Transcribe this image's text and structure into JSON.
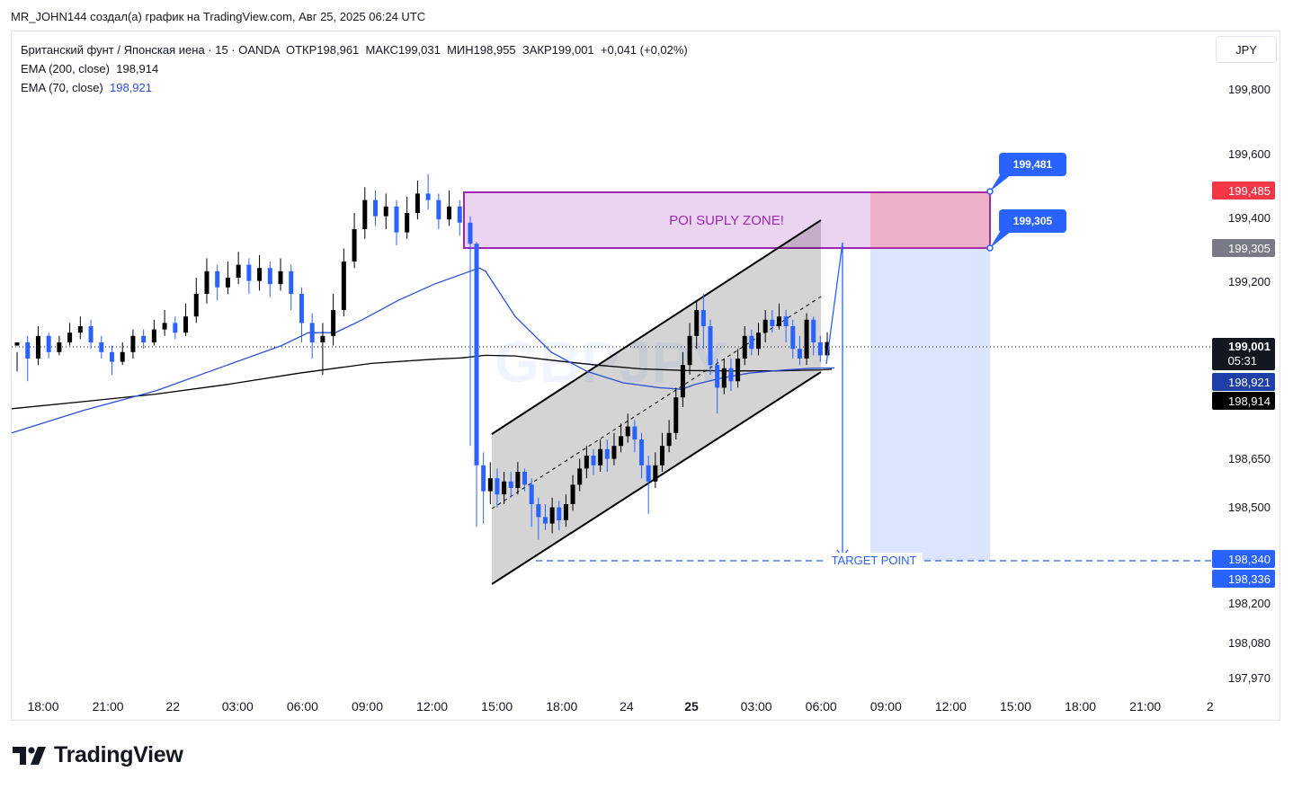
{
  "header": {
    "attribution": "MR_JOHN144 создал(а) график на TradingView.com, Авг 25, 2025 06:24 UTC"
  },
  "legend": {
    "symbol": "Британский фунт / Японская иена · 15 · OANDA",
    "open_label": "ОТКР",
    "open": "198,961",
    "high_label": "МАКС",
    "high": "199,031",
    "low_label": "МИН",
    "low": "198,955",
    "close_label": "ЗАКР",
    "close": "199,001",
    "change": "+0,041 (+0,02%)",
    "ema200_label": "EMA (200, close)",
    "ema200_value": "198,914",
    "ema70_label": "EMA (70, close)",
    "ema70_value": "198,921"
  },
  "currency_button": "JPY",
  "brand": {
    "name": "TradingView"
  },
  "chart_data": {
    "type": "candlestick",
    "symbol": "GBPJPY",
    "watermark": "GBPJPY",
    "timeframe": "15",
    "x_ticks": [
      "18:00",
      "21:00",
      "22",
      "03:00",
      "06:00",
      "09:00",
      "12:00",
      "15:00",
      "18:00",
      "24",
      "25",
      "03:00",
      "06:00",
      "09:00",
      "12:00",
      "15:00",
      "18:00",
      "21:00",
      "2"
    ],
    "y_ticks": [
      {
        "value": 199.8,
        "label": "199,800"
      },
      {
        "value": 199.6,
        "label": "199,600"
      },
      {
        "value": 199.4,
        "label": "199,400"
      },
      {
        "value": 199.2,
        "label": "199,200"
      },
      {
        "value": 198.65,
        "label": "198,650"
      },
      {
        "value": 198.5,
        "label": "198,500"
      },
      {
        "value": 198.2,
        "label": "198,200"
      },
      {
        "value": 198.08,
        "label": "198,080"
      },
      {
        "value": 197.97,
        "label": "197,970"
      }
    ],
    "price_labels": [
      {
        "value": 199.485,
        "label": "199,485",
        "color": "#f23645"
      },
      {
        "value": 199.305,
        "label": "199,305",
        "color": "#787b86"
      },
      {
        "value": 199.001,
        "label": "199,001",
        "sublabel": "05:31",
        "color": "#131722"
      },
      {
        "value": 198.921,
        "label": "198,921",
        "color": "#1e3fa8"
      },
      {
        "value": 198.914,
        "label": "198,914",
        "color": "#000000"
      },
      {
        "value": 198.34,
        "label": "198,340",
        "color": "#2962ff"
      },
      {
        "value": 198.336,
        "label": "198,336",
        "color": "#2962ff"
      }
    ],
    "annotations": {
      "supply_zone_label": "POI SUPLY ZONE!",
      "supply_zone_top": 199.481,
      "supply_zone_bottom": 199.305,
      "callout_top": "199,481",
      "callout_bottom": "199,305",
      "target_label": "TARGET POINT",
      "target_price": 198.34
    },
    "series": [
      {
        "name": "EMA (200, close)",
        "color": "#000000"
      },
      {
        "name": "EMA (70, close)",
        "color": "#2a4fd7"
      }
    ],
    "ema200": [
      [
        0,
        198.795
      ],
      [
        80,
        198.817
      ],
      [
        160,
        198.84
      ],
      [
        240,
        198.87
      ],
      [
        320,
        198.905
      ],
      [
        400,
        198.935
      ],
      [
        470,
        198.948
      ],
      [
        500,
        198.952
      ],
      [
        527,
        198.96
      ],
      [
        560,
        198.958
      ],
      [
        600,
        198.945
      ],
      [
        650,
        198.93
      ],
      [
        700,
        198.918
      ],
      [
        750,
        198.913
      ],
      [
        800,
        198.912
      ],
      [
        850,
        198.912
      ],
      [
        900,
        198.915
      ],
      [
        912,
        198.917
      ]
    ],
    "ema70": [
      [
        0,
        198.72
      ],
      [
        80,
        198.79
      ],
      [
        160,
        198.85
      ],
      [
        240,
        198.93
      ],
      [
        300,
        198.99
      ],
      [
        330,
        199.03
      ],
      [
        360,
        199.03
      ],
      [
        390,
        199.07
      ],
      [
        430,
        199.13
      ],
      [
        470,
        199.18
      ],
      [
        510,
        199.22
      ],
      [
        520,
        199.23
      ],
      [
        527,
        199.22
      ],
      [
        560,
        199.08
      ],
      [
        600,
        198.97
      ],
      [
        640,
        198.91
      ],
      [
        680,
        198.875
      ],
      [
        720,
        198.86
      ],
      [
        745,
        198.855
      ],
      [
        760,
        198.87
      ],
      [
        790,
        198.89
      ],
      [
        820,
        198.905
      ],
      [
        860,
        198.915
      ],
      [
        890,
        198.92
      ],
      [
        915,
        198.921
      ]
    ],
    "candles": [
      [
        0,
        198.99,
        199.0,
        198.97,
        198.91
      ],
      [
        1,
        199.0,
        198.95,
        199.02,
        198.88
      ],
      [
        2,
        198.95,
        199.02,
        199.05,
        198.93
      ],
      [
        3,
        199.02,
        198.97,
        199.03,
        198.95
      ],
      [
        4,
        198.97,
        199.0,
        199.02,
        198.96
      ],
      [
        5,
        199.0,
        199.03,
        199.06,
        198.99
      ],
      [
        6,
        199.03,
        199.05,
        199.08,
        199.01
      ],
      [
        7,
        199.05,
        199.0,
        199.07,
        198.98
      ],
      [
        8,
        199.0,
        198.97,
        199.02,
        198.95
      ],
      [
        9,
        198.97,
        198.94,
        198.99,
        198.9
      ],
      [
        10,
        198.94,
        198.97,
        199.0,
        198.93
      ],
      [
        11,
        198.97,
        199.02,
        199.04,
        198.95
      ],
      [
        12,
        199.02,
        199.0,
        199.04,
        198.98
      ],
      [
        13,
        199.0,
        199.04,
        199.07,
        198.99
      ],
      [
        14,
        199.04,
        199.06,
        199.1,
        199.02
      ],
      [
        15,
        199.06,
        199.03,
        199.08,
        199.01
      ],
      [
        16,
        199.03,
        199.08,
        199.12,
        199.02
      ],
      [
        17,
        199.08,
        199.15,
        199.2,
        199.06
      ],
      [
        18,
        199.15,
        199.22,
        199.26,
        199.12
      ],
      [
        19,
        199.22,
        199.17,
        199.24,
        199.13
      ],
      [
        20,
        199.17,
        199.2,
        199.25,
        199.15
      ],
      [
        21,
        199.2,
        199.24,
        199.28,
        199.18
      ],
      [
        22,
        199.24,
        199.19,
        199.26,
        199.15
      ],
      [
        23,
        199.19,
        199.23,
        199.27,
        199.16
      ],
      [
        24,
        199.23,
        199.18,
        199.25,
        199.14
      ],
      [
        25,
        199.18,
        199.22,
        199.26,
        199.16
      ],
      [
        26,
        199.22,
        199.15,
        199.24,
        199.1
      ],
      [
        27,
        199.15,
        199.06,
        199.17,
        199.0
      ],
      [
        28,
        199.06,
        199.0,
        199.09,
        198.95
      ],
      [
        29,
        199.0,
        199.02,
        199.06,
        198.9
      ],
      [
        30,
        199.02,
        199.1,
        199.15,
        198.99
      ],
      [
        31,
        199.1,
        199.25,
        199.29,
        199.08
      ],
      [
        32,
        199.25,
        199.35,
        199.4,
        199.23
      ],
      [
        33,
        199.35,
        199.44,
        199.48,
        199.32
      ],
      [
        34,
        199.44,
        199.39,
        199.47,
        199.36
      ],
      [
        35,
        199.39,
        199.42,
        199.46,
        199.35
      ],
      [
        36,
        199.42,
        199.34,
        199.44,
        199.3
      ],
      [
        37,
        199.34,
        199.4,
        199.45,
        199.32
      ],
      [
        38,
        199.4,
        199.46,
        199.5,
        199.38
      ],
      [
        39,
        199.46,
        199.44,
        199.52,
        199.41
      ],
      [
        40,
        199.44,
        199.38,
        199.46,
        199.35
      ],
      [
        41,
        199.38,
        199.42,
        199.47,
        199.36
      ],
      [
        42,
        199.42,
        199.37,
        199.44,
        199.33
      ],
      [
        43,
        199.37,
        199.305,
        199.39,
        198.68
      ],
      [
        44,
        199.305,
        198.62,
        199.31,
        198.43
      ],
      [
        45,
        198.62,
        198.54,
        198.66,
        198.44
      ],
      [
        46,
        198.54,
        198.58,
        198.63,
        198.5
      ],
      [
        47,
        198.58,
        198.53,
        198.61,
        198.49
      ],
      [
        48,
        198.53,
        198.57,
        198.6,
        198.5
      ],
      [
        49,
        198.57,
        198.55,
        198.6,
        198.52
      ],
      [
        50,
        198.55,
        198.6,
        198.63,
        198.53
      ],
      [
        51,
        198.6,
        198.56,
        198.61,
        198.54
      ],
      [
        52,
        198.56,
        198.5,
        198.58,
        198.43
      ],
      [
        53,
        198.5,
        198.46,
        198.52,
        198.39
      ],
      [
        54,
        198.46,
        198.44,
        198.5,
        198.42
      ],
      [
        55,
        198.44,
        198.49,
        198.52,
        198.41
      ],
      [
        56,
        198.49,
        198.45,
        198.51,
        198.42
      ],
      [
        57,
        198.45,
        198.5,
        198.53,
        198.43
      ],
      [
        58,
        198.5,
        198.56,
        198.59,
        198.48
      ],
      [
        59,
        198.56,
        198.61,
        198.64,
        198.54
      ],
      [
        60,
        198.61,
        198.65,
        198.68,
        198.58
      ],
      [
        61,
        198.65,
        198.62,
        198.67,
        198.59
      ],
      [
        62,
        198.62,
        198.67,
        198.7,
        198.6
      ],
      [
        63,
        198.67,
        198.64,
        198.7,
        198.6
      ],
      [
        64,
        198.64,
        198.68,
        198.72,
        198.62
      ],
      [
        65,
        198.68,
        198.71,
        198.75,
        198.66
      ],
      [
        66,
        198.71,
        198.74,
        198.78,
        198.69
      ],
      [
        67,
        198.74,
        198.7,
        198.76,
        198.66
      ],
      [
        68,
        198.7,
        198.62,
        198.72,
        198.58
      ],
      [
        69,
        198.62,
        198.57,
        198.65,
        198.47
      ],
      [
        70,
        198.57,
        198.62,
        198.66,
        198.55
      ],
      [
        71,
        198.62,
        198.68,
        198.72,
        198.6
      ],
      [
        72,
        198.68,
        198.72,
        198.76,
        198.66
      ],
      [
        73,
        198.72,
        198.83,
        198.86,
        198.7
      ],
      [
        74,
        198.83,
        198.93,
        198.97,
        198.8
      ],
      [
        75,
        198.93,
        199.02,
        199.06,
        198.9
      ],
      [
        76,
        199.02,
        199.1,
        199.13,
        198.98
      ],
      [
        77,
        199.1,
        199.05,
        199.15,
        198.98
      ],
      [
        78,
        199.05,
        198.93,
        199.07,
        198.9
      ],
      [
        79,
        198.93,
        198.86,
        198.95,
        198.78
      ],
      [
        80,
        198.86,
        198.92,
        198.95,
        198.84
      ],
      [
        81,
        198.92,
        198.88,
        198.95,
        198.85
      ],
      [
        82,
        198.88,
        198.95,
        198.98,
        198.86
      ],
      [
        83,
        198.95,
        199.02,
        199.05,
        198.93
      ],
      [
        84,
        199.02,
        198.98,
        199.04,
        198.96
      ],
      [
        85,
        198.98,
        199.03,
        199.06,
        198.96
      ],
      [
        86,
        199.03,
        199.07,
        199.1,
        199.0
      ],
      [
        87,
        199.07,
        199.05,
        199.1,
        199.03
      ],
      [
        88,
        199.05,
        199.08,
        199.12,
        199.04
      ],
      [
        89,
        199.08,
        199.05,
        199.1,
        199.0
      ],
      [
        90,
        199.05,
        198.98,
        199.07,
        198.95
      ],
      [
        91,
        198.98,
        198.95,
        199.02,
        198.93
      ],
      [
        92,
        198.95,
        199.07,
        199.09,
        198.93
      ],
      [
        93,
        199.07,
        199.0,
        199.08,
        198.96
      ],
      [
        94,
        199.0,
        198.96,
        199.02,
        198.94
      ],
      [
        95,
        198.96,
        199.001,
        199.031,
        198.955
      ]
    ]
  }
}
